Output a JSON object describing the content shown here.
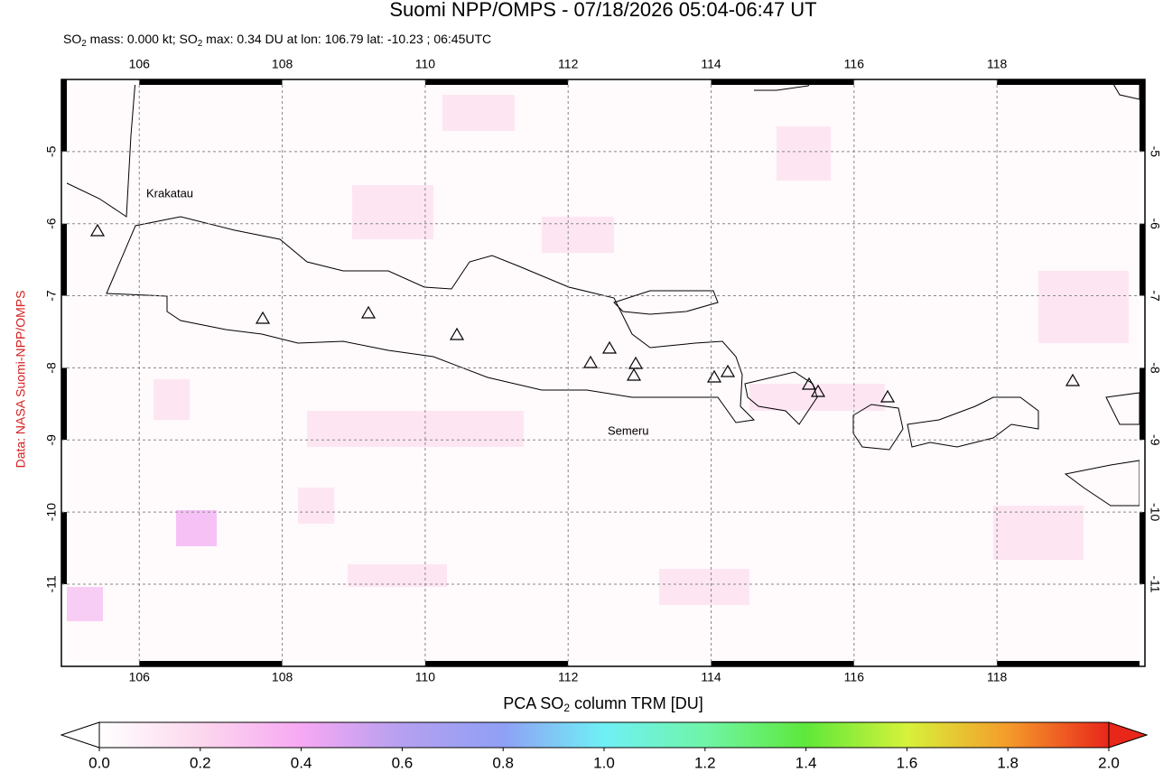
{
  "header": {
    "title": "Suomi NPP/OMPS - 07/18/2026 05:04-06:47 UT",
    "subtitle_parts": [
      "SO",
      "2",
      " mass: 0.000 kt; SO",
      "2",
      " max: 0.34 DU at lon: 106.79 lat: -10.23 ; 06:45UTC"
    ]
  },
  "map": {
    "lonlim": [
      104.91,
      120.07
    ],
    "latlim": [
      -12.14,
      -4.0
    ],
    "lonticks": [
      106,
      108,
      110,
      112,
      114,
      116,
      118
    ],
    "latticks": [
      -5,
      -6,
      -7,
      -8,
      -9,
      -10,
      -11
    ],
    "volcano_labels": [
      "Krakatau",
      "Semeru"
    ]
  },
  "colorbar": {
    "title_parts": [
      "PCA SO",
      "2",
      " column TRM [DU]"
    ],
    "range": [
      0,
      2
    ],
    "ticks": [
      {
        "value": 0,
        "label": "0.0"
      },
      {
        "value": 0.2,
        "label": "0.2"
      },
      {
        "value": 0.4,
        "label": "0.4"
      },
      {
        "value": 0.6,
        "label": "0.6"
      },
      {
        "value": 0.8,
        "label": "0.8"
      },
      {
        "value": 1,
        "label": "1.0"
      },
      {
        "value": 1.2,
        "label": "1.2"
      },
      {
        "value": 1.4,
        "label": "1.4"
      },
      {
        "value": 1.6,
        "label": "1.6"
      },
      {
        "value": 1.8,
        "label": "1.8"
      },
      {
        "value": 2,
        "label": "2.0"
      }
    ]
  },
  "credit": "Data: NASA Suomi-NPP/OMPS"
}
